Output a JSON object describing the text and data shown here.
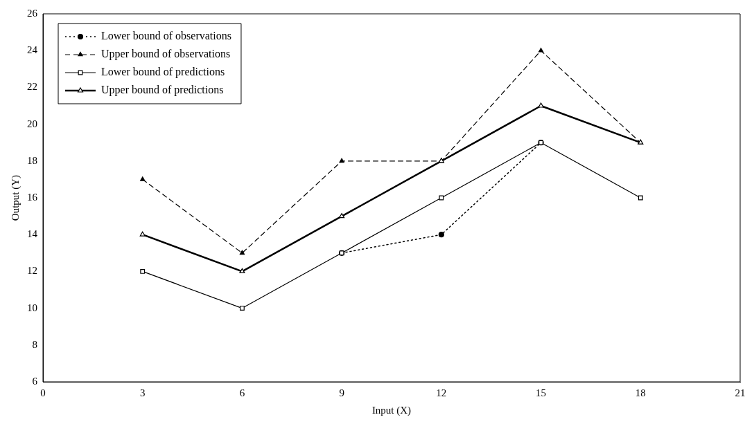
{
  "chart_data": {
    "type": "line",
    "xlabel": "Input (X)",
    "ylabel": "Output (Y)",
    "x": [
      3,
      6,
      9,
      12,
      15,
      18
    ],
    "xlim": [
      0,
      21
    ],
    "xticks": [
      0,
      3,
      6,
      9,
      12,
      15,
      18,
      21
    ],
    "ylim": [
      6,
      26
    ],
    "yticks": [
      6,
      8,
      10,
      12,
      14,
      16,
      18,
      20,
      22,
      24,
      26
    ],
    "grid": false,
    "legend": "top left",
    "series": [
      {
        "name": "Lower bound of observations",
        "color": "#000000",
        "marker": "circle",
        "line_style": "dotted",
        "values": [
          null,
          null,
          13,
          14,
          19,
          null
        ]
      },
      {
        "name": "Upper bound of observations",
        "color": "#000000",
        "marker": "triangle",
        "line_style": "dashed",
        "values": [
          17,
          13,
          18,
          18,
          24,
          19
        ]
      },
      {
        "name": "Lower bound of predictions",
        "color": "#000000",
        "marker": "square",
        "line_style": "solid",
        "values": [
          12,
          10,
          13,
          16,
          19,
          16
        ]
      },
      {
        "name": "Upper bound of predictions",
        "color": "#000000",
        "marker": "triangle",
        "line_style": "solid",
        "values": [
          14,
          12,
          15,
          18,
          21,
          19
        ]
      }
    ]
  }
}
